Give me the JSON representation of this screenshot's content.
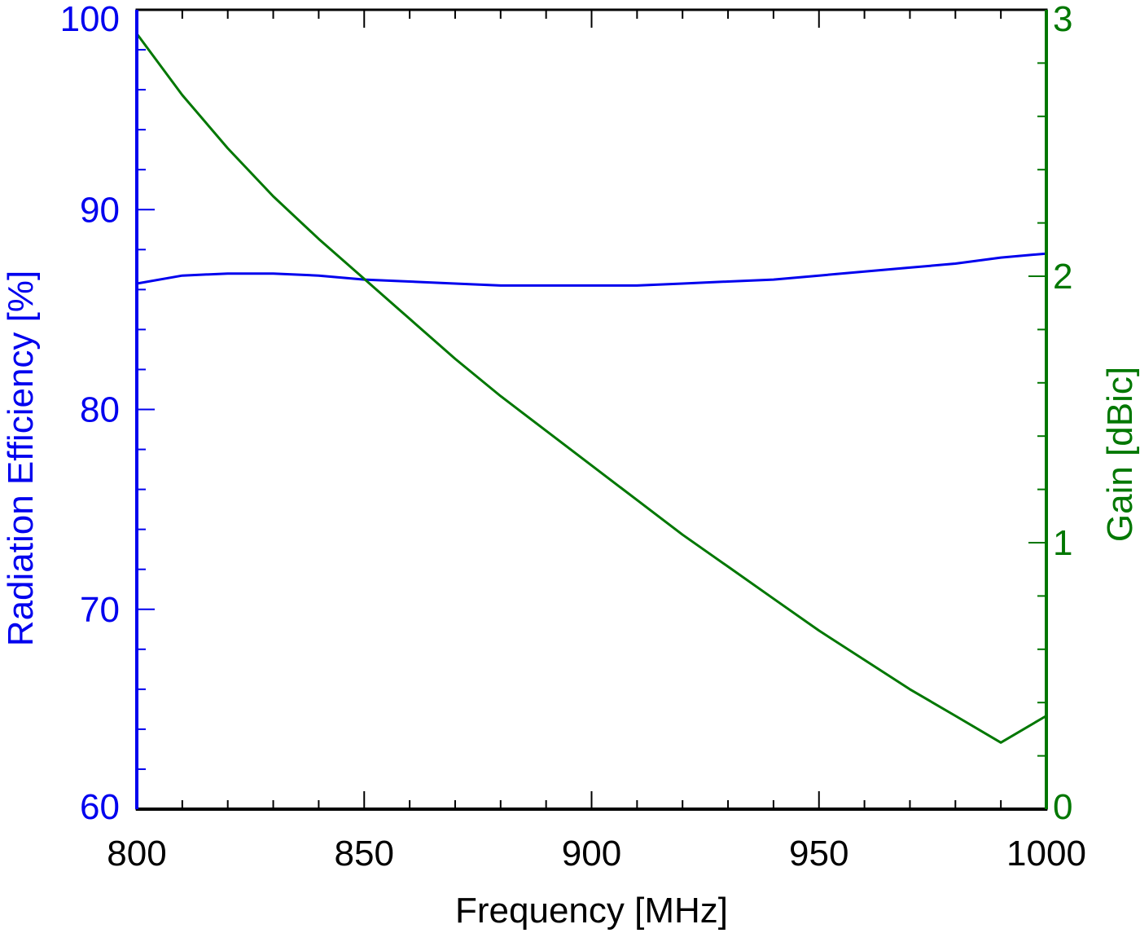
{
  "chart_data": {
    "type": "line",
    "xlabel": "Frequency [MHz]",
    "ylabel_left": "Radiation Efficiency [%]",
    "ylabel_right": "Gain [dBic]",
    "xlim": [
      800,
      1000
    ],
    "ylim_left": [
      60,
      100
    ],
    "ylim_right": [
      0,
      3
    ],
    "x_ticks": [
      "800",
      "850",
      "900",
      "950",
      "1000"
    ],
    "y_left_ticks": [
      "60",
      "70",
      "80",
      "90",
      "100"
    ],
    "y_right_ticks": [
      "0",
      "1",
      "2",
      "3"
    ],
    "grid": false,
    "colors": {
      "axes": "#000000",
      "left_axis": "#0000ee",
      "right_axis": "#007700"
    },
    "series": [
      {
        "axis": "left",
        "color": "#0000ee",
        "x": [
          800,
          810,
          820,
          830,
          840,
          850,
          860,
          870,
          880,
          890,
          900,
          910,
          920,
          930,
          940,
          950,
          960,
          970,
          980,
          990,
          1000
        ],
        "values": [
          86.3,
          86.7,
          86.8,
          86.8,
          86.7,
          86.5,
          86.4,
          86.3,
          86.2,
          86.2,
          86.2,
          86.2,
          86.3,
          86.4,
          86.5,
          86.7,
          86.9,
          87.1,
          87.3,
          87.6,
          87.8
        ]
      },
      {
        "axis": "right",
        "color": "#007700",
        "x": [
          800,
          810,
          820,
          830,
          840,
          850,
          860,
          870,
          880,
          890,
          900,
          910,
          920,
          930,
          940,
          950,
          960,
          970,
          980,
          990,
          1000
        ],
        "values": [
          2.91,
          2.68,
          2.48,
          2.3,
          2.14,
          1.99,
          1.84,
          1.69,
          1.55,
          1.42,
          1.29,
          1.16,
          1.03,
          0.91,
          0.79,
          0.67,
          0.56,
          0.45,
          0.35,
          0.25,
          0.35
        ]
      }
    ]
  }
}
